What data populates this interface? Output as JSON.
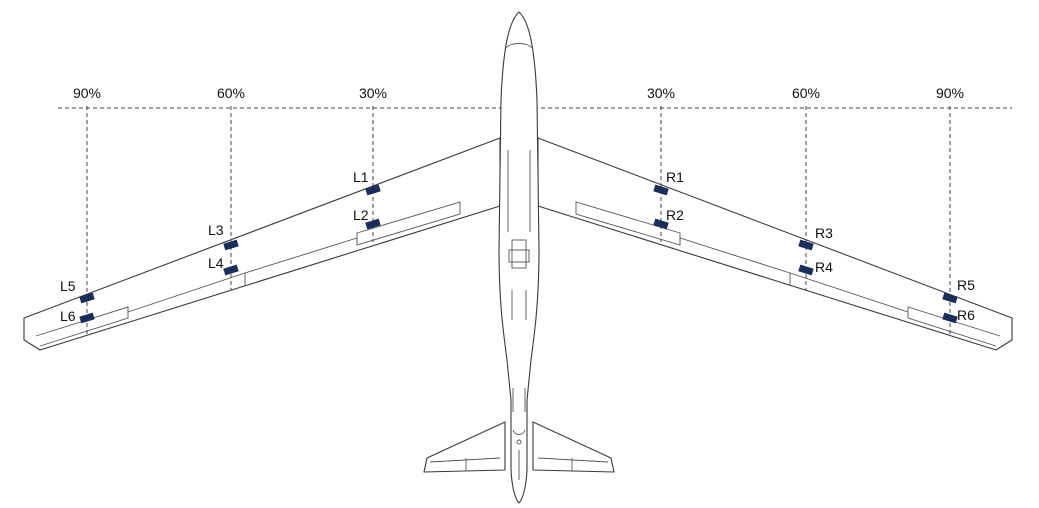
{
  "stations": [
    {
      "id": "l90",
      "label": "90%"
    },
    {
      "id": "l60",
      "label": "60%"
    },
    {
      "id": "l30",
      "label": "30%"
    },
    {
      "id": "r30",
      "label": "30%"
    },
    {
      "id": "r60",
      "label": "60%"
    },
    {
      "id": "r90",
      "label": "90%"
    }
  ],
  "sensors": [
    {
      "id": "L1",
      "label": "L1"
    },
    {
      "id": "L2",
      "label": "L2"
    },
    {
      "id": "L3",
      "label": "L3"
    },
    {
      "id": "L4",
      "label": "L4"
    },
    {
      "id": "L5",
      "label": "L5"
    },
    {
      "id": "L6",
      "label": "L6"
    },
    {
      "id": "R1",
      "label": "R1"
    },
    {
      "id": "R2",
      "label": "R2"
    },
    {
      "id": "R3",
      "label": "R3"
    },
    {
      "id": "R4",
      "label": "R4"
    },
    {
      "id": "R5",
      "label": "R5"
    },
    {
      "id": "R6",
      "label": "R6"
    }
  ],
  "colors": {
    "sensor": "#1b2e5a",
    "line": "#3a3a3a"
  }
}
